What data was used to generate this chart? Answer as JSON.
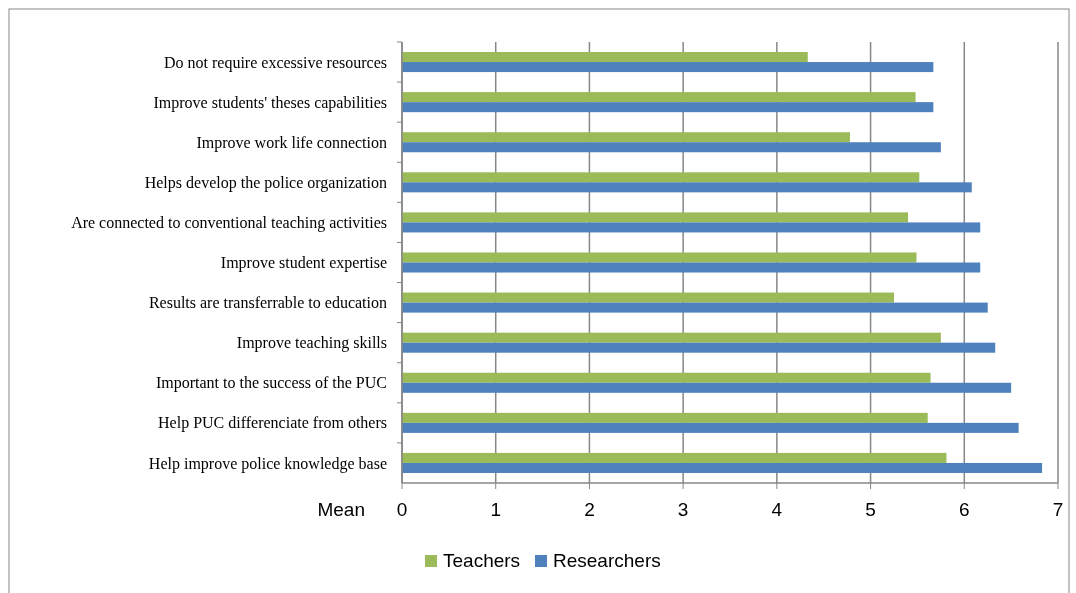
{
  "chart_data": {
    "type": "bar",
    "orientation": "horizontal",
    "xlabel": "Mean",
    "categories": [
      "Do not require excessive resources",
      "Improve students' theses capabilities",
      "Improve work life connection",
      "Helps develop the police organization",
      "Are connected to conventional teaching activities",
      "Improve student expertise",
      "Results are transferrable to education",
      "Improve teaching skills",
      "Important to the success of the PUC",
      "Help PUC differenciate from others",
      "Help improve police knowledge base"
    ],
    "series": [
      {
        "name": "Teachers",
        "color": "#9bbb59",
        "values": [
          4.33,
          5.48,
          4.78,
          5.52,
          5.4,
          5.49,
          5.25,
          5.75,
          5.64,
          5.61,
          5.81
        ]
      },
      {
        "name": "Researchers",
        "color": "#4f81bd",
        "values": [
          5.67,
          5.67,
          5.75,
          6.08,
          6.17,
          6.17,
          6.25,
          6.33,
          6.5,
          6.58,
          6.83
        ]
      }
    ],
    "xlim": [
      0,
      7
    ],
    "xticks": [
      0,
      1,
      2,
      3,
      4,
      5,
      6,
      7
    ],
    "grid": "x",
    "legend": "bottom"
  }
}
